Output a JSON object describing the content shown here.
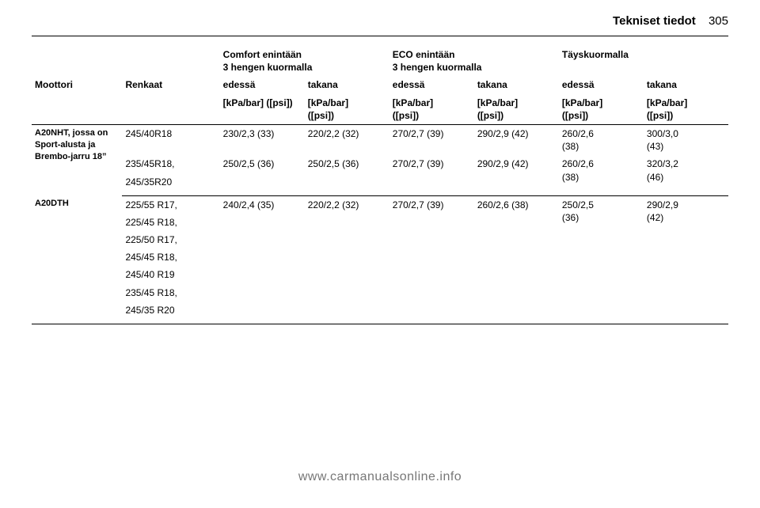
{
  "header": {
    "section": "Tekniset tiedot",
    "page": "305"
  },
  "groupHeaders": {
    "comfort": "Comfort enintään\n3 hengen kuormalla",
    "eco": "ECO enintään\n3 hengen kuormalla",
    "full": "Täyskuormalla"
  },
  "colHeads": {
    "engine": "Moottori",
    "tyres": "Renkaat",
    "front": "edessä",
    "rear": "takana",
    "unit_front": "[kPa/bar] ([psi])",
    "unit_rear": "[kPa/bar]\n([psi])"
  },
  "rows": [
    {
      "engine": "A20NHT, jossa on Sport-alusta ja Brembo-jarru 18”",
      "tyreGroups": [
        {
          "tyres": [
            "245/40R18"
          ],
          "vals": [
            "230/2,3 (33)",
            "220/2,2 (32)",
            "270/2,7 (39)",
            "290/2,9 (42)",
            "260/2,6\n(38)",
            "300/3,0\n(43)"
          ]
        },
        {
          "tyres": [
            "235/45R18,",
            "245/35R20"
          ],
          "vals": [
            "250/2,5 (36)",
            "250/2,5 (36)",
            "270/2,7 (39)",
            "290/2,9 (42)",
            "260/2,6\n(38)",
            "320/3,2\n(46)"
          ]
        }
      ]
    },
    {
      "engine": "A20DTH",
      "tyreGroups": [
        {
          "tyres": [
            "225/55 R17,",
            "225/45 R18,",
            "225/50 R17,",
            "245/45 R18,",
            "245/40 R19",
            "235/45 R18,",
            "245/35 R20"
          ],
          "vals": [
            "240/2,4 (35)",
            "220/2,2 (32)",
            "270/2,7 (39)",
            "260/2,6 (38)",
            "250/2,5\n(36)",
            "290/2,9\n(42)"
          ]
        }
      ]
    }
  ],
  "footer": "www.carmanualsonline.info"
}
